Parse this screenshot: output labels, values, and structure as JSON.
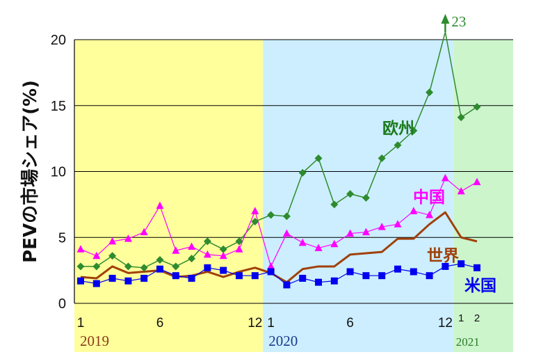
{
  "chart_data": {
    "type": "line",
    "ylabel": "PEVの市場シェア(%)",
    "ylim": [
      0,
      20
    ],
    "yticks": [
      "0",
      "5",
      "10",
      "15",
      "20"
    ],
    "grid": "horizontal",
    "x_month_labels": [
      {
        "index": 0,
        "label": "1"
      },
      {
        "index": 5,
        "label": "6"
      },
      {
        "index": 11,
        "label": "12"
      },
      {
        "index": 12,
        "label": "1"
      },
      {
        "index": 17,
        "label": "6"
      },
      {
        "index": 23,
        "label": "12"
      },
      {
        "index": 24,
        "label": "1"
      },
      {
        "index": 25,
        "label": "2"
      }
    ],
    "periods": [
      {
        "label": "2019",
        "start": 0,
        "end": 11,
        "color": "#ffff9c",
        "label_color": "#8b3a1a"
      },
      {
        "label": "2020",
        "start": 12,
        "end": 23,
        "color": "#cceeff",
        "label_color": "#1a3a8b"
      },
      {
        "label": "2021",
        "start": 24,
        "end": 25,
        "color": "#ccf5cc",
        "label_color": "#2a7a2a"
      }
    ],
    "series": [
      {
        "name": "欧州",
        "color": "#2e8b2e",
        "label_color": "#1e7a1e",
        "marker": "diamond",
        "line_width": 1.5,
        "values": [
          2.8,
          2.8,
          3.6,
          2.8,
          2.7,
          3.3,
          2.8,
          3.4,
          4.7,
          4.1,
          4.7,
          6.2,
          6.7,
          6.6,
          9.9,
          11.0,
          7.5,
          8.3,
          8.0,
          11.0,
          12.0,
          13.1,
          16.0,
          23,
          14.1,
          14.9
        ]
      },
      {
        "name": "中国",
        "color": "#ff00ff",
        "label_color": "#ff00ff",
        "marker": "triangle",
        "line_width": 1.2,
        "values": [
          4.1,
          3.6,
          4.7,
          4.9,
          5.4,
          7.4,
          4.0,
          4.3,
          3.7,
          3.6,
          4.1,
          7.0,
          2.8,
          5.3,
          4.6,
          4.2,
          4.5,
          5.3,
          5.4,
          5.8,
          6.0,
          7.0,
          6.7,
          9.5,
          8.5,
          9.2
        ]
      },
      {
        "name": "世界",
        "color": "#a0400a",
        "label_color": "#a0400a",
        "marker": "none",
        "line_width": 3,
        "values": [
          2.0,
          1.9,
          2.8,
          2.3,
          2.4,
          2.5,
          2.0,
          2.1,
          2.4,
          2.0,
          2.4,
          2.7,
          2.3,
          1.6,
          2.6,
          2.8,
          2.8,
          3.7,
          3.8,
          3.9,
          4.9,
          4.9,
          6.0,
          6.9,
          5.0,
          4.7
        ]
      },
      {
        "name": "米国",
        "color": "#0000ee",
        "label_color": "#0000ee",
        "marker": "square",
        "line_width": 1.2,
        "values": [
          1.7,
          1.5,
          1.9,
          1.7,
          1.9,
          2.6,
          2.1,
          1.9,
          2.7,
          2.5,
          2.1,
          2.1,
          2.4,
          1.4,
          1.9,
          1.6,
          1.7,
          2.4,
          2.1,
          2.1,
          2.6,
          2.4,
          2.1,
          2.8,
          3.0,
          2.7
        ]
      }
    ],
    "annotations": [
      {
        "text": "23",
        "series": "欧州",
        "index": 23,
        "color": "#2e8b2e"
      }
    ]
  }
}
